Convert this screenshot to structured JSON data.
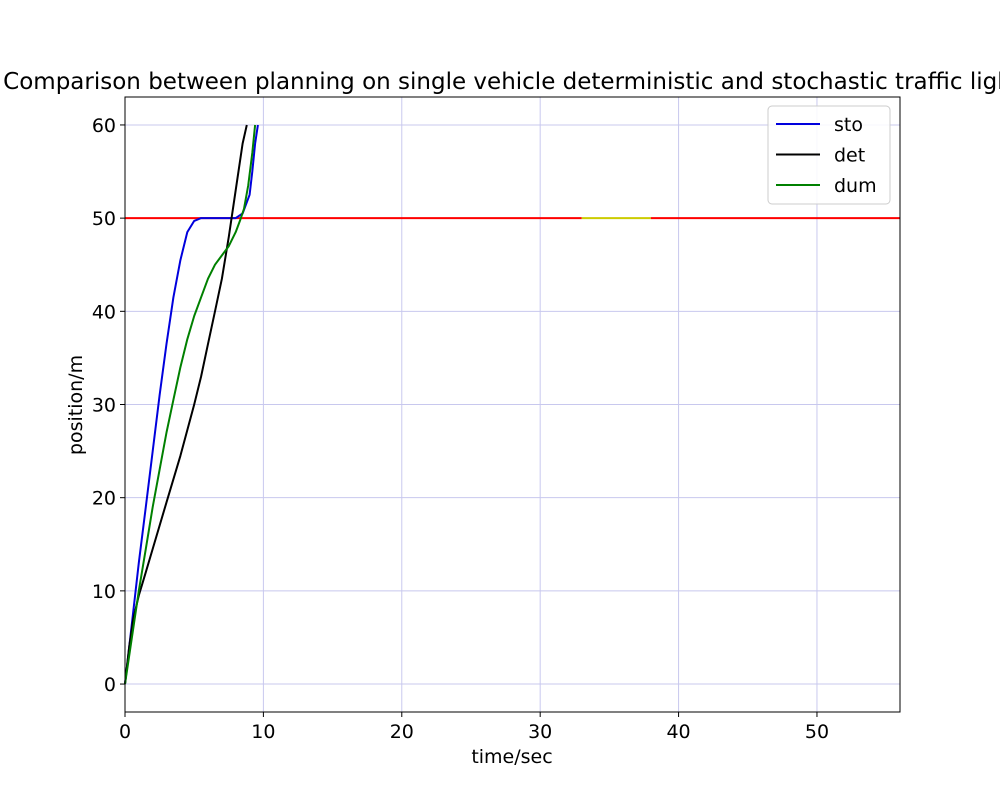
{
  "chart_data": {
    "type": "line",
    "title": "Comparison between planning on single vehicle deterministic and stochastic traffic light",
    "xlabel": "time/sec",
    "ylabel": "position/m",
    "xlim": [
      0,
      56
    ],
    "ylim": [
      -3,
      63
    ],
    "xticks": [
      0,
      10,
      20,
      30,
      40,
      50
    ],
    "yticks": [
      0,
      10,
      20,
      30,
      40,
      50,
      60
    ],
    "grid": true,
    "grid_color": "#c8c8ee",
    "legend_position": "top-right",
    "series": [
      {
        "name": "sto",
        "color": "#0000dd",
        "x": [
          0,
          0.5,
          1,
          1.5,
          2,
          2.5,
          3,
          3.5,
          4,
          4.5,
          5,
          5.5,
          6,
          6.5,
          7,
          7.5,
          8,
          8.5,
          9,
          9.2,
          9.4,
          9.6
        ],
        "y": [
          0,
          6.5,
          13,
          19,
          25,
          31,
          36.5,
          41.5,
          45.5,
          48.5,
          49.7,
          50,
          50,
          50,
          50,
          50,
          50,
          50.5,
          52.5,
          55,
          58,
          60
        ]
      },
      {
        "name": "det",
        "color": "#000000",
        "x": [
          0,
          0.3,
          0.6,
          1,
          1.5,
          2,
          3,
          4,
          5,
          5.5,
          6,
          6.5,
          7,
          7.5,
          8,
          8.5,
          8.8
        ],
        "y": [
          0,
          4,
          7,
          9.5,
          12,
          14.5,
          19.5,
          24.5,
          30,
          33,
          36.5,
          40,
          43.5,
          48,
          53,
          58,
          60
        ]
      },
      {
        "name": "dum",
        "color": "#008000",
        "x": [
          0,
          0.5,
          1,
          1.5,
          2,
          2.5,
          3,
          3.5,
          4,
          4.5,
          5,
          5.5,
          6,
          6.5,
          7,
          7.5,
          8,
          8.3,
          8.6,
          8.9,
          9.2,
          9.4
        ],
        "y": [
          0,
          5,
          10,
          14.5,
          19,
          23,
          27,
          30.5,
          34,
          37,
          39.5,
          41.5,
          43.5,
          45,
          46,
          47,
          48.5,
          49.7,
          51,
          53.5,
          57,
          60
        ]
      }
    ],
    "traffic_light": {
      "y": 50,
      "segments": [
        {
          "x": [
            0,
            33
          ],
          "color": "#ff0000"
        },
        {
          "x": [
            33,
            38
          ],
          "color": "#cccc00"
        },
        {
          "x": [
            38,
            56
          ],
          "color": "#ff0000"
        }
      ]
    }
  }
}
